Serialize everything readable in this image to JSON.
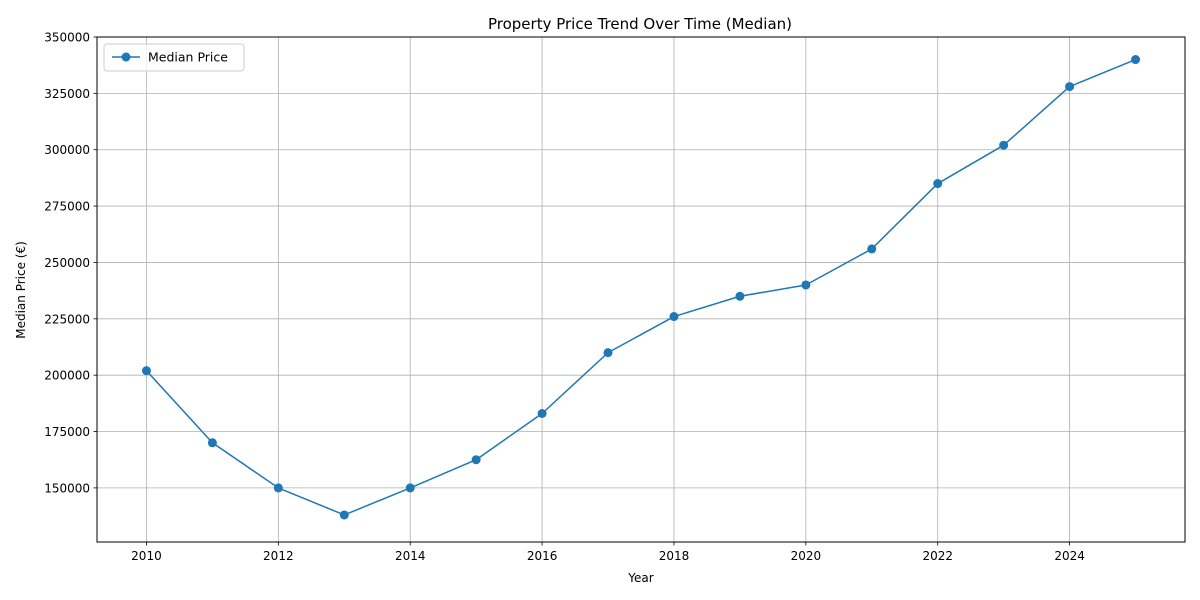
{
  "chart_data": {
    "type": "line",
    "title": "Property Price Trend Over Time (Median)",
    "xlabel": "Year",
    "ylabel": "Median Price (€)",
    "xlim": [
      2009.25,
      2025.75
    ],
    "ylim": [
      126000,
      350000
    ],
    "x_ticks": [
      2010,
      2012,
      2014,
      2016,
      2018,
      2020,
      2022,
      2024
    ],
    "y_ticks": [
      150000,
      175000,
      200000,
      225000,
      250000,
      275000,
      300000,
      325000,
      350000
    ],
    "grid": true,
    "legend_position": "upper-left",
    "series": [
      {
        "name": "Median Price",
        "color": "#1f77b4",
        "marker": "circle",
        "x": [
          2010,
          2011,
          2012,
          2013,
          2014,
          2015,
          2016,
          2017,
          2018,
          2019,
          2020,
          2021,
          2022,
          2023,
          2024,
          2025
        ],
        "y": [
          202000,
          170000,
          150000,
          138000,
          150000,
          162500,
          183000,
          210000,
          226000,
          235000,
          240000,
          256000,
          285000,
          302000,
          328000,
          340000
        ]
      }
    ]
  }
}
